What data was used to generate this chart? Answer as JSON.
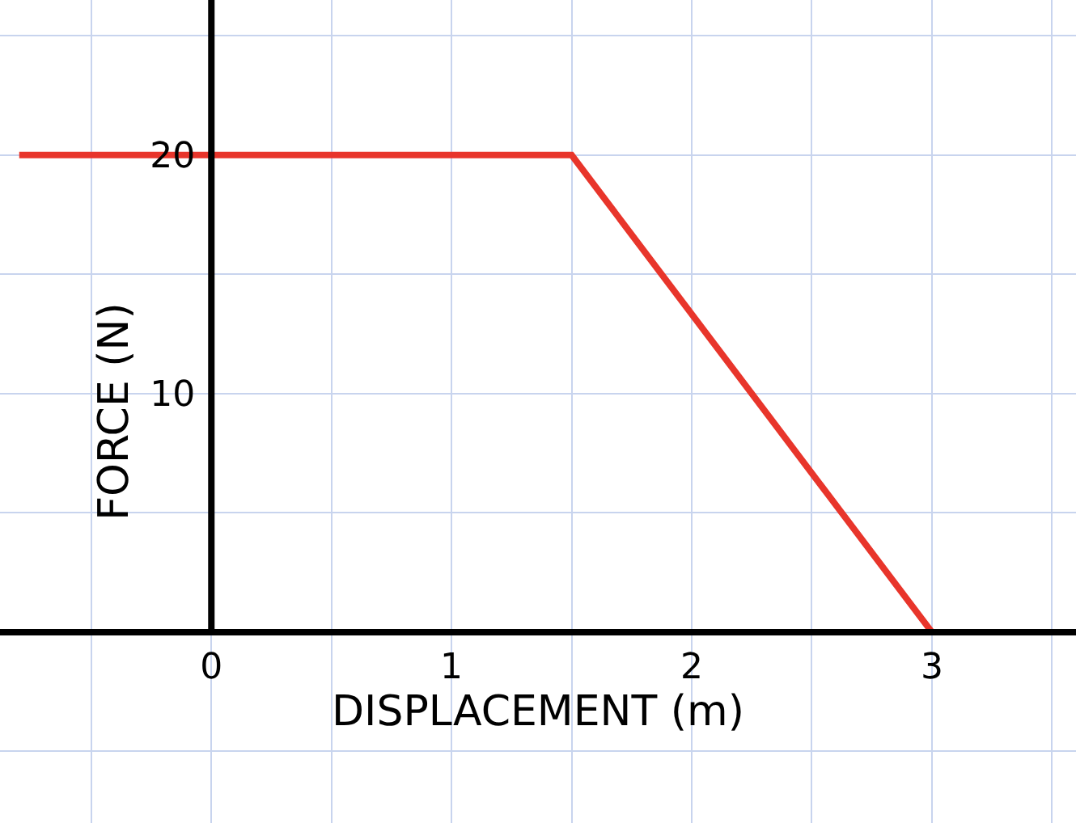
{
  "chart_data": {
    "type": "line",
    "xlabel": "DISPLACEMENT (m)",
    "ylabel": "FORCE (N)",
    "x": [
      -0.8,
      1.5,
      3
    ],
    "series": [
      {
        "color": "#e8352b",
        "values": [
          20,
          20,
          0
        ]
      }
    ],
    "xlim": [
      -0.88,
      3.6
    ],
    "ylim": [
      -8,
      26.5
    ],
    "xticks": [
      {
        "value": -0.5,
        "label": null
      },
      0,
      {
        "value": 0.5,
        "label": null
      },
      1,
      {
        "value": 1.5,
        "label": null
      },
      2,
      {
        "value": 2.5,
        "label": null
      },
      3,
      {
        "value": 3.5,
        "label": null
      }
    ],
    "yticks": [
      {
        "value": -5,
        "label": null
      },
      {
        "value": 0,
        "label": null
      },
      {
        "value": 5,
        "label": null
      },
      10,
      {
        "value": 15,
        "label": null
      },
      20,
      {
        "value": 25,
        "label": null
      }
    ],
    "grid": true,
    "marker": "none",
    "line_style": "solid"
  }
}
